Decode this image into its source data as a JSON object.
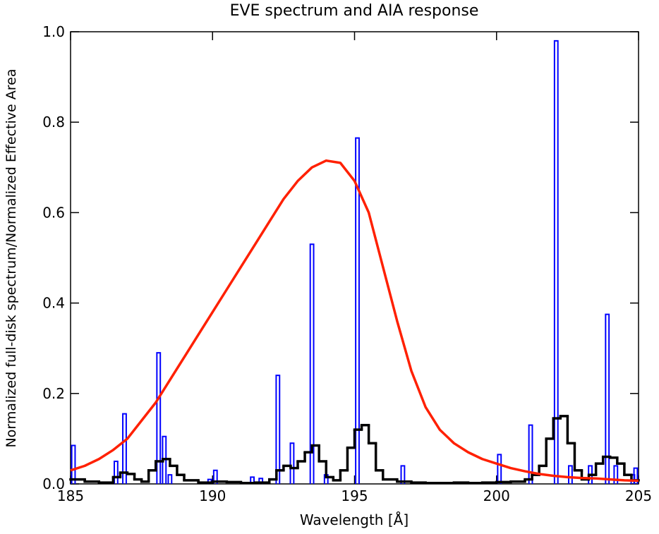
{
  "chart_data": {
    "type": "line",
    "title": "EVE spectrum and AIA response",
    "xlabel": "Wavelength [Å]",
    "ylabel": "Normalized full-disk spectrum/Normalized Effective Area",
    "xlim": [
      185,
      205
    ],
    "ylim": [
      0,
      1
    ],
    "xticks": [
      185,
      190,
      195,
      200,
      205
    ],
    "yticks": [
      {
        "value": 0,
        "label": "0.0"
      },
      0.2,
      0.4,
      0.6,
      0.8,
      {
        "value": 1,
        "label": "1.0"
      }
    ],
    "grid": false,
    "series": [
      {
        "color": "#0000ff",
        "style": "spike",
        "x": [
          185.1,
          186.6,
          186.9,
          188.1,
          188.3,
          188.5,
          189.9,
          190.1,
          191.4,
          191.7,
          192.3,
          192.8,
          193.5,
          194.0,
          195.1,
          196.7,
          200.1,
          201.2,
          202.1,
          202.6,
          203.3,
          203.9,
          204.2,
          204.8,
          204.9
        ],
        "values": [
          0.085,
          0.05,
          0.155,
          0.29,
          0.105,
          0.02,
          0.01,
          0.03,
          0.015,
          0.012,
          0.24,
          0.09,
          0.53,
          0.02,
          0.765,
          0.04,
          0.065,
          0.13,
          0.98,
          0.04,
          0.04,
          0.375,
          0.04,
          0.02,
          0.035
        ]
      },
      {
        "color": "#000000",
        "style": "step",
        "x": [
          185,
          185.5,
          186,
          186.5,
          186.75,
          187,
          187.25,
          187.5,
          187.75,
          188,
          188.25,
          188.5,
          188.75,
          189,
          189.5,
          190,
          190.5,
          191,
          191.5,
          192,
          192.25,
          192.5,
          192.75,
          193,
          193.25,
          193.5,
          193.75,
          194,
          194.25,
          194.5,
          194.75,
          195,
          195.25,
          195.5,
          195.75,
          196,
          196.5,
          197,
          197.5,
          198,
          198.5,
          199,
          199.5,
          200,
          200.5,
          201,
          201.25,
          201.5,
          201.75,
          202,
          202.25,
          202.5,
          202.75,
          203,
          203.25,
          203.5,
          203.75,
          204,
          204.25,
          204.5,
          204.75
        ],
        "values": [
          0.01,
          0.005,
          0.003,
          0.015,
          0.025,
          0.022,
          0.01,
          0.005,
          0.03,
          0.05,
          0.055,
          0.04,
          0.02,
          0.008,
          0.003,
          0.005,
          0.004,
          0.002,
          0.003,
          0.01,
          0.03,
          0.04,
          0.035,
          0.05,
          0.07,
          0.085,
          0.05,
          0.015,
          0.008,
          0.03,
          0.08,
          0.12,
          0.13,
          0.09,
          0.03,
          0.01,
          0.005,
          0.003,
          0.002,
          0.002,
          0.003,
          0.002,
          0.003,
          0.004,
          0.005,
          0.01,
          0.02,
          0.04,
          0.1,
          0.145,
          0.15,
          0.09,
          0.03,
          0.01,
          0.02,
          0.045,
          0.06,
          0.058,
          0.045,
          0.02,
          0.008
        ]
      },
      {
        "color": "#ff2000",
        "style": "line",
        "x": [
          185,
          185.5,
          186,
          186.5,
          187,
          187.5,
          188,
          188.5,
          189,
          189.5,
          190,
          190.5,
          191,
          191.5,
          192,
          192.5,
          193,
          193.5,
          194,
          194.5,
          195,
          195.5,
          196,
          196.5,
          197,
          197.5,
          198,
          198.5,
          199,
          199.5,
          200,
          200.5,
          201,
          201.5,
          202,
          202.5,
          203,
          203.5,
          204,
          204.5,
          205
        ],
        "values": [
          0.03,
          0.04,
          0.055,
          0.075,
          0.1,
          0.14,
          0.18,
          0.23,
          0.28,
          0.33,
          0.38,
          0.43,
          0.48,
          0.53,
          0.58,
          0.63,
          0.67,
          0.7,
          0.715,
          0.71,
          0.67,
          0.6,
          0.48,
          0.36,
          0.25,
          0.17,
          0.12,
          0.09,
          0.07,
          0.055,
          0.045,
          0.035,
          0.028,
          0.022,
          0.018,
          0.015,
          0.013,
          0.012,
          0.01,
          0.008,
          0.007
        ]
      }
    ]
  }
}
